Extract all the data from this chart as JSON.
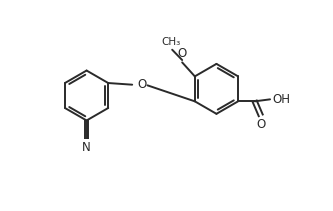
{
  "background_color": "#ffffff",
  "line_color": "#2a2a2a",
  "line_width": 1.4,
  "figsize": [
    3.33,
    2.11
  ],
  "dpi": 100,
  "xlim": [
    0,
    10
  ],
  "ylim": [
    0,
    6
  ]
}
